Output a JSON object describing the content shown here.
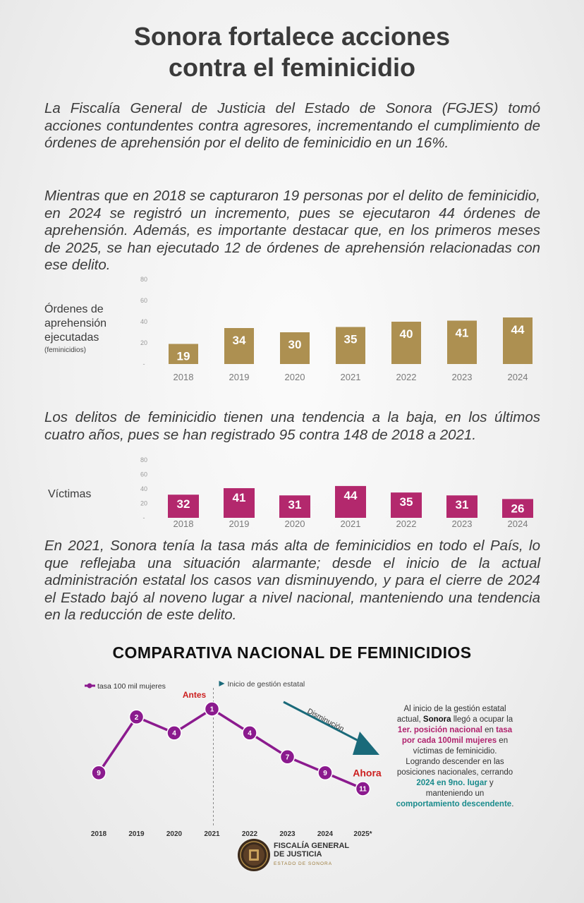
{
  "title": "Sonora fortalece acciones\ncontra el feminicidio",
  "paragraphs": {
    "p1": "La Fiscalía General de Justicia del Estado de Sonora (FGJES) tomó acciones contundentes contra agresores, incrementando el cumplimiento de órdenes de aprehensión por el delito de feminicidio en un 16%.",
    "p2": "Mientras que en 2018 se capturaron 19 personas por el delito de feminicidio, en 2024 se registró un incremento, pues se ejecutaron 44 órdenes de aprehensión. Además, es importante destacar que, en los primeros meses de 2025, se han ejecutado 12 de órdenes de aprehensión relacionadas con ese delito.",
    "p3": "Los delitos de feminicidio tienen una tendencia a la baja, en los últimos cuatro años, pues se han registrado 95 contra 148 de 2018 a 2021.",
    "p4": "En 2021, Sonora tenía la tasa más alta de feminicidios en todo el País, lo que reflejaba una situación alarmante; desde el inicio de la actual administración estatal los casos van disminuyendo, y para el cierre de 2024 el Estado bajó al noveno lugar a nivel nacional, manteniendo una tendencia en la reducción de este delito."
  },
  "colors": {
    "gold": "#ad9051",
    "magenta": "#b3286d",
    "purple": "#8b1a8e",
    "teal": "#1a6a7a",
    "red": "#cc1f1f"
  },
  "chart_data": [
    {
      "type": "bar",
      "ylabel": "Órdenes de aprehensión ejecutadas",
      "ylabel_note": "(feminicidios)",
      "categories": [
        "2018",
        "2019",
        "2020",
        "2021",
        "2022",
        "2023",
        "2024"
      ],
      "values": [
        19,
        34,
        30,
        35,
        40,
        41,
        44
      ],
      "ylim": [
        0,
        80
      ],
      "yticks": [
        "80",
        "60",
        "40",
        "20",
        "-"
      ],
      "color": "#ad9051"
    },
    {
      "type": "bar",
      "ylabel": "Víctimas",
      "categories": [
        "2018",
        "2019",
        "2020",
        "2021",
        "2022",
        "2023",
        "2024"
      ],
      "values": [
        32,
        41,
        31,
        44,
        35,
        31,
        26
      ],
      "ylim": [
        0,
        80
      ],
      "yticks": [
        "80",
        "60",
        "40",
        "20",
        "-"
      ],
      "color": "#b3286d"
    },
    {
      "type": "line",
      "title": "COMPARATIVA NACIONAL DE FEMINICIDIOS",
      "series": [
        {
          "name": "tasa 100 mil mujeres",
          "values": [
            9,
            2,
            4,
            1,
            4,
            7,
            9,
            11
          ]
        }
      ],
      "categories": [
        "2018",
        "2019",
        "2020",
        "2021",
        "2022",
        "2023",
        "2024",
        "2025*"
      ],
      "y_inverted": true,
      "ylim": [
        12,
        1
      ],
      "legend_position": "top-left",
      "annotations": {
        "management_start": "Inicio de gestión estatal",
        "antes": "Antes",
        "ahora": "Ahora",
        "trend": "Disminución"
      }
    }
  ],
  "note": {
    "a": "Al inicio de la gestión estatal actual, ",
    "b": "Sonora",
    "c": " llegó a ocupar la ",
    "d": "1er. posición nacional",
    "e": " en ",
    "f": "tasa por cada 100mil mujeres",
    "g": " en víctimas de feminicidio. Logrando descender en las posiciones nacionales, cerrando ",
    "h": "2024 en 9no. lugar",
    "i": " y manteniendo un ",
    "j": "comportamiento descendente",
    "k": "."
  },
  "logo": {
    "line1": "FISCALÍA GENERAL",
    "line2": "DE JUSTICIA",
    "line3": "ESTADO DE SONORA"
  }
}
